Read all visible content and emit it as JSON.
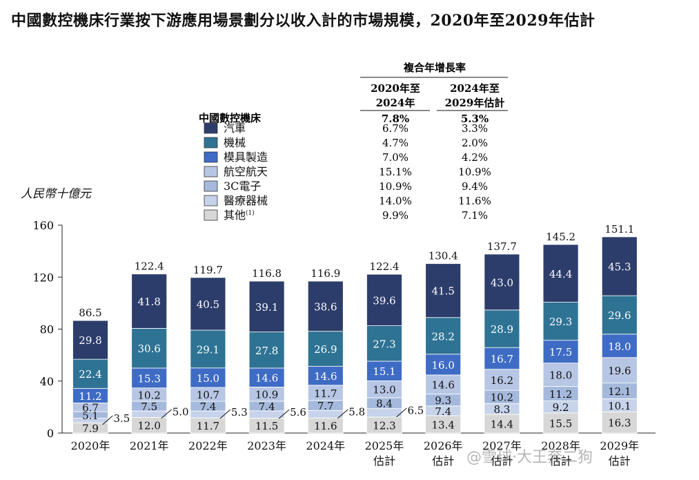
{
  "page": {
    "title": "中國數控機床行業按下游應用場景劃分以收入計的市場規模，2020年至2029年估計",
    "unit_label": "人民幣十億元",
    "watermark": "@雪球·大王奔二狗"
  },
  "chart_data": {
    "type": "bar",
    "stacked": true,
    "title": "中國數控機床行業按下游應用場景劃分以收入計的市場規模，2020年至2029年估計",
    "ylabel": "人民幣十億元",
    "ylim": [
      0,
      160
    ],
    "yticks": [
      0,
      40,
      80,
      120,
      160
    ],
    "grid": false,
    "legend_position": "top-center",
    "legend_title": "中國數控機床",
    "categories": [
      [
        "2020年"
      ],
      [
        "2021年"
      ],
      [
        "2022年"
      ],
      [
        "2023年"
      ],
      [
        "2024年"
      ],
      [
        "2025年",
        "估計"
      ],
      [
        "2026年",
        "估計"
      ],
      [
        "2027年",
        "估計"
      ],
      [
        "2028年",
        "估計"
      ],
      [
        "2029年",
        "估計"
      ]
    ],
    "totals": [
      "86.5",
      "122.4",
      "119.7",
      "116.8",
      "116.9",
      "122.4",
      "130.4",
      "137.7",
      "145.2",
      "151.1"
    ],
    "series": [
      {
        "name": "其他",
        "name_sup": "(1)",
        "color": "#d7d7d7",
        "label_color": "#111111",
        "values": [
          7.9,
          12.0,
          11.7,
          11.5,
          11.6,
          12.3,
          13.4,
          14.4,
          15.5,
          16.3
        ],
        "labels": [
          "7.9",
          "12.0",
          "11.7",
          "11.5",
          "11.6",
          "12.3",
          "13.4",
          "14.4",
          "15.5",
          "16.3"
        ]
      },
      {
        "name": "醫療器械",
        "color": "#c6d3ea",
        "label_color": "#111111",
        "values": [
          3.5,
          5.0,
          5.3,
          5.6,
          5.8,
          6.5,
          7.4,
          8.3,
          9.2,
          10.1
        ],
        "labels": [
          "3.5",
          "5.0",
          "5.3",
          "5.6",
          "5.8",
          "6.5",
          "7.4",
          "8.3",
          "9.2",
          "10.1"
        ],
        "outside": [
          true,
          true,
          true,
          true,
          true,
          true,
          false,
          false,
          false,
          false
        ]
      },
      {
        "name": "3C電子",
        "color": "#a5b9dc",
        "label_color": "#111111",
        "values": [
          5.1,
          7.5,
          7.4,
          7.4,
          7.7,
          8.4,
          9.3,
          10.2,
          11.2,
          12.1
        ],
        "labels": [
          "5.1",
          "7.5",
          "7.4",
          "7.4",
          "7.7",
          "8.4",
          "9.3",
          "10.2",
          "11.2",
          "12.1"
        ]
      },
      {
        "name": "航空航天",
        "color": "#b7c6e4",
        "label_color": "#111111",
        "values": [
          6.7,
          10.2,
          10.7,
          10.9,
          11.7,
          13.0,
          14.6,
          16.2,
          18.0,
          19.6
        ],
        "labels": [
          "6.7",
          "10.2",
          "10.7",
          "10.9",
          "11.7",
          "13.0",
          "14.6",
          "16.2",
          "18.0",
          "19.6"
        ]
      },
      {
        "name": "模具製造",
        "color": "#3e6cc5",
        "label_color": "#ffffff",
        "values": [
          11.2,
          15.3,
          15.0,
          14.6,
          14.6,
          15.1,
          16.0,
          16.7,
          17.5,
          18.0
        ],
        "labels": [
          "11.2",
          "15.3",
          "15.0",
          "14.6",
          "14.6",
          "15.1",
          "16.0",
          "16.7",
          "17.5",
          "18.0"
        ]
      },
      {
        "name": "機械",
        "color": "#2e7394",
        "label_color": "#ffffff",
        "values": [
          22.4,
          30.6,
          29.1,
          27.8,
          26.9,
          27.3,
          28.2,
          28.9,
          29.3,
          29.6
        ],
        "labels": [
          "22.4",
          "30.6",
          "29.1",
          "27.8",
          "26.9",
          "27.3",
          "28.2",
          "28.9",
          "29.3",
          "29.6"
        ]
      },
      {
        "name": "汽車",
        "color": "#2d3d6b",
        "label_color": "#ffffff",
        "values": [
          29.8,
          41.8,
          40.5,
          39.1,
          38.6,
          39.6,
          41.5,
          43.0,
          44.4,
          45.3
        ],
        "labels": [
          "29.8",
          "41.8",
          "40.5",
          "39.1",
          "38.6",
          "39.6",
          "41.5",
          "43.0",
          "44.4",
          "45.3"
        ]
      }
    ],
    "legend_order": [
      "汽車",
      "機械",
      "模具製造",
      "航空航天",
      "3C電子",
      "醫療器械",
      "其他"
    ],
    "cagr_table": {
      "title": "複合年增長率",
      "col_headers": [
        [
          "2020年至",
          "2024年"
        ],
        [
          "2024年至",
          "2029年估計"
        ]
      ],
      "total_row": [
        "7.8%",
        "5.3%"
      ],
      "rows": [
        [
          "6.7%",
          "3.3%"
        ],
        [
          "4.7%",
          "2.0%"
        ],
        [
          "7.0%",
          "4.2%"
        ],
        [
          "15.1%",
          "10.9%"
        ],
        [
          "10.9%",
          "9.4%"
        ],
        [
          "14.0%",
          "11.6%"
        ],
        [
          "9.9%",
          "7.1%"
        ]
      ]
    }
  }
}
